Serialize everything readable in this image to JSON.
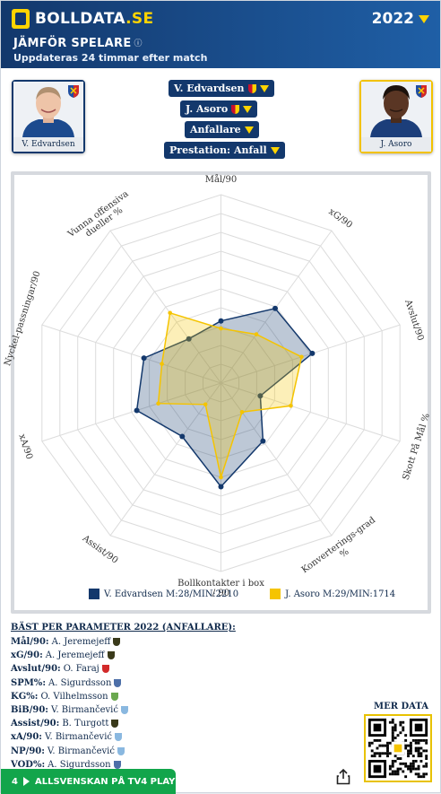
{
  "header": {
    "logo_text": "BOLLDATA",
    "logo_suffix": ".SE",
    "year": "2022",
    "title": "JÄMFÖR SPELARE",
    "info_icon": "ⓘ",
    "subtitle": "Uppdateras 24 timmar efter match"
  },
  "players": {
    "left": {
      "name": "V. Edvardsen"
    },
    "right": {
      "name": "J. Asoro"
    }
  },
  "selectors": {
    "player1": "V. Edvardsen",
    "player2": "J. Asoro",
    "position": "Anfallare",
    "preset": "Prestation: Anfall"
  },
  "chart_data": {
    "type": "radar",
    "axes": [
      "Mål/90",
      "xG/90",
      "Avslut/90",
      "Skott På Mål %",
      "Konverterings-grad %",
      "Bollkontakter i box / 90",
      "Assist/90",
      "xA/90",
      "Nyckel-passningar/90",
      "Vunna offensiva dueller %"
    ],
    "rmax": 10,
    "series": [
      {
        "name": "V. Edvardsen M:28/MIN:2210",
        "color": "#13386c",
        "values": [
          3.3,
          4.9,
          5.1,
          2.2,
          3.8,
          5.5,
          3.5,
          4.7,
          4.3,
          2.9
        ]
      },
      {
        "name": "J. Asoro M:29/MIN:1714",
        "color": "#f5c400",
        "values": [
          2.9,
          3.2,
          4.5,
          3.9,
          1.9,
          5.0,
          1.4,
          3.5,
          3.3,
          4.6
        ]
      }
    ]
  },
  "best": {
    "title": "BÄST PER PARAMETER 2022 (ANFALLARE):",
    "rows": [
      {
        "param": "Mål/90:",
        "player": "A. Jeremejeff",
        "club_color": "#3a3a1a"
      },
      {
        "param": "xG/90:",
        "player": "A. Jeremejeff",
        "club_color": "#3a3a1a"
      },
      {
        "param": "Avslut/90:",
        "player": "O. Faraj",
        "club_color": "#d22a2a"
      },
      {
        "param": "SPM%:",
        "player": "A. Sigurdsson",
        "club_color": "#4d6fa8"
      },
      {
        "param": "KG%:",
        "player": "O. Vilhelmsson",
        "club_color": "#6aa84f"
      },
      {
        "param": "BiB/90:",
        "player": "V. Birmančević",
        "club_color": "#8ab8e0"
      },
      {
        "param": "Assist/90:",
        "player": "B. Turgott",
        "club_color": "#3a3a1a"
      },
      {
        "param": "xA/90:",
        "player": "V. Birmančević",
        "club_color": "#8ab8e0"
      },
      {
        "param": "NP/90:",
        "player": "V. Birmančević",
        "club_color": "#8ab8e0"
      },
      {
        "param": "VOD%:",
        "player": "A. Sigurdsson",
        "club_color": "#4d6fa8"
      }
    ]
  },
  "mer_data": "MER DATA",
  "footer": {
    "badge": "4",
    "text": "ALLSVENSKAN PÅ TV4 PLAY"
  },
  "colors": {
    "navy": "#13386c",
    "yellow": "#f5c400",
    "green": "#12a54b"
  }
}
